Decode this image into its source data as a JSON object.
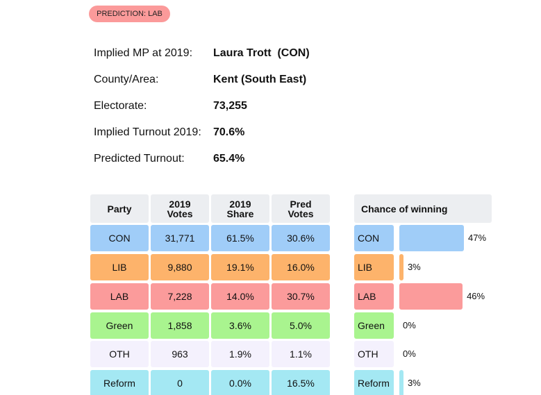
{
  "badge": "PREDICTION: LAB",
  "info": [
    {
      "label": "Implied MP at 2019:",
      "value": "Laura Trott  (CON)"
    },
    {
      "label": "County/Area:",
      "value": "Kent (South East)"
    },
    {
      "label": "Electorate:",
      "value": "73,255"
    },
    {
      "label": "Implied Turnout 2019:",
      "value": "70.6%"
    },
    {
      "label": "Predicted Turnout:",
      "value": "65.4%"
    }
  ],
  "table": {
    "header": [
      "Party",
      "2019 Votes",
      "2019 Share",
      "Pred Votes"
    ],
    "rows": [
      [
        "CON",
        "31,771",
        "61.5%",
        "30.6%"
      ],
      [
        "LIB",
        "9,880",
        "19.1%",
        "16.0%"
      ],
      [
        "LAB",
        "7,228",
        "14.0%",
        "30.7%"
      ],
      [
        "Green",
        "1,858",
        "3.6%",
        "5.0%"
      ],
      [
        "OTH",
        "963",
        "1.9%",
        "1.1%"
      ],
      [
        "Reform",
        "0",
        "0.0%",
        "16.5%"
      ]
    ]
  },
  "chance": {
    "header": "Chance of winning",
    "values": [
      47,
      3,
      46,
      0,
      0,
      3
    ],
    "value_labels": [
      "47%",
      "3%",
      "46%",
      "0%",
      "0%",
      "3%"
    ]
  }
}
